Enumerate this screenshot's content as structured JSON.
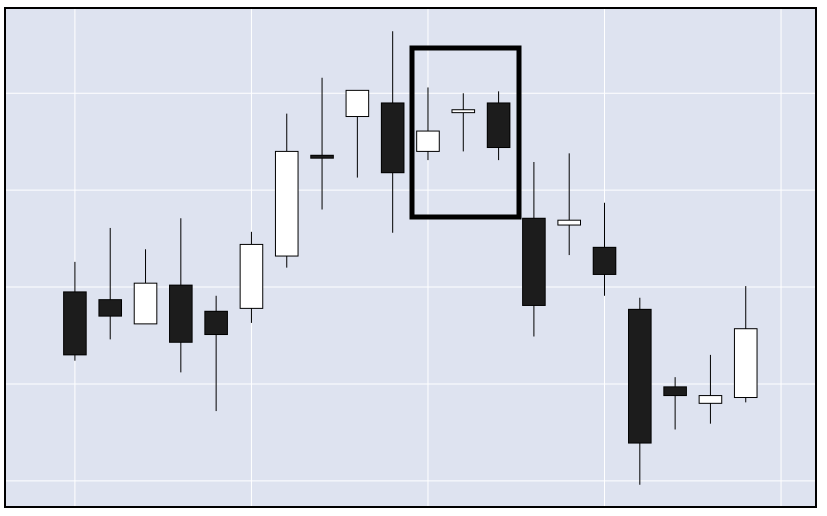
{
  "chart_data": {
    "type": "candlestick",
    "x": [
      0,
      1,
      2,
      3,
      4,
      5,
      6,
      7,
      8,
      9,
      10,
      11,
      12,
      13,
      14,
      15,
      16,
      17,
      18,
      19
    ],
    "open": [
      1.95,
      1.87,
      1.62,
      2.02,
      1.75,
      1.78,
      2.32,
      3.36,
      3.76,
      3.9,
      3.4,
      3.8,
      3.9,
      2.71,
      2.64,
      2.41,
      1.77,
      0.97,
      0.8,
      0.86
    ],
    "high": [
      2.26,
      2.61,
      2.39,
      2.71,
      1.91,
      2.57,
      3.79,
      4.16,
      4.03,
      4.64,
      4.06,
      4.0,
      4.02,
      3.29,
      3.38,
      2.87,
      1.89,
      1.07,
      1.3,
      2.01
    ],
    "low": [
      1.24,
      1.46,
      1.62,
      1.12,
      0.72,
      1.63,
      2.2,
      2.8,
      3.13,
      2.56,
      3.31,
      3.4,
      3.31,
      1.49,
      2.33,
      1.91,
      -0.04,
      0.53,
      0.59,
      0.81
    ],
    "close": [
      1.3,
      1.7,
      2.04,
      1.43,
      1.51,
      2.44,
      3.4,
      3.33,
      4.03,
      3.18,
      3.61,
      3.83,
      3.44,
      1.81,
      2.69,
      2.13,
      0.39,
      0.88,
      0.88,
      1.57
    ],
    "xlim": [
      -1.98,
      20.99
    ],
    "xticks": [
      0,
      5,
      10,
      15,
      20
    ],
    "ylim": [
      -0.27,
      4.88
    ],
    "yticks": [
      0,
      1,
      2,
      3,
      4
    ],
    "grid": true,
    "up_color": "#ffffff",
    "down_color": "#1c1c1c",
    "background": "#dee3f0"
  }
}
